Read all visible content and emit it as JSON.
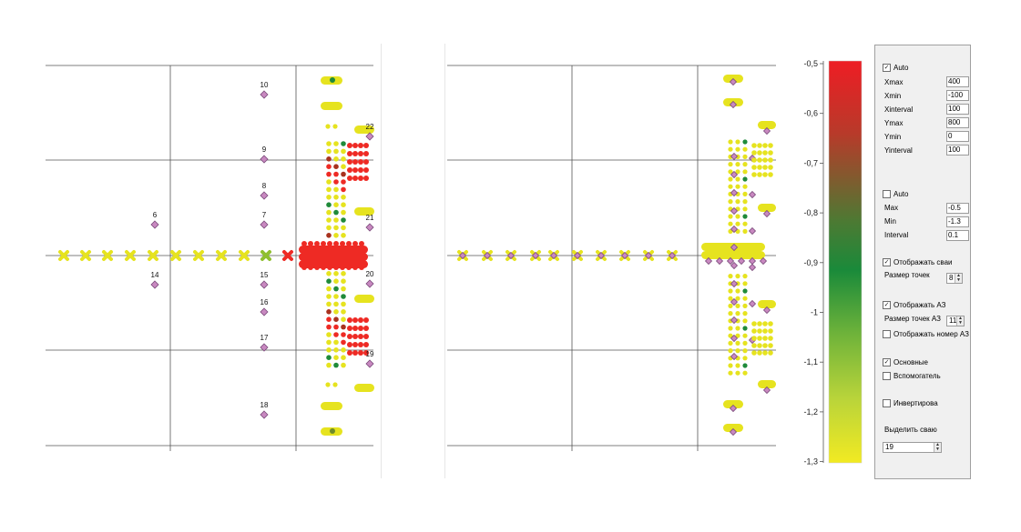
{
  "left_plot": {
    "pile_labels": [
      "10",
      "9",
      "8",
      "7",
      "6",
      "14",
      "15",
      "16",
      "17",
      "18",
      "22",
      "21",
      "20",
      "19"
    ]
  },
  "color_scale": {
    "ticks": [
      "-0,5",
      "-0,6",
      "-0,7",
      "-0,8",
      "-0,9",
      "-1",
      "-1,1",
      "-1,2",
      "-1,3"
    ],
    "colors": [
      "#ee1d24",
      "#b83a2a",
      "#4c7a33",
      "#1a8a3a",
      "#6fb33a",
      "#b9d43a",
      "#f2ea22"
    ]
  },
  "panel": {
    "auto1_label": "Auto",
    "xmax_label": "Xmax",
    "xmax_value": "400",
    "xmin_label": "Xmin",
    "xmin_value": "-100",
    "xinterval_label": "Xinterval",
    "xinterval_value": "100",
    "ymax_label": "Ymax",
    "ymax_value": "800",
    "ymin_label": "Ymin",
    "ymin_value": "0",
    "yinterval_label": "Yinterval",
    "yinterval_value": "100",
    "auto2_label": "Auto",
    "max_label": "Max",
    "max_value": "-0.5",
    "min_label": "Min",
    "min_value": "-1.3",
    "interval_label": "Interval",
    "interval_value": "0.1",
    "show_piles_label": "Отображать сваи",
    "point_size_label": "Размер точек",
    "point_size_value": "8",
    "show_az_label": "Отображать АЗ",
    "az_point_size_label": "Размер точек АЗ",
    "az_point_size_value": "11",
    "show_az_number_label": "Отображать номер АЗ",
    "main_label": "Основные",
    "aux_label": "Вспомогатель",
    "invert_label": "Инвертирова",
    "select_pile_label": "Выделить сваю",
    "select_pile_value": "19"
  }
}
